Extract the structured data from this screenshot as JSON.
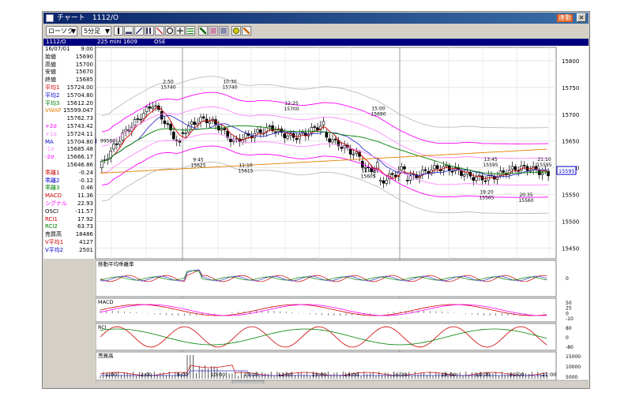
{
  "window": {
    "title": "チャート　1112/O",
    "link_label": "連動",
    "close_label": "✕"
  },
  "toolbar": {
    "chart_type": "ローソク",
    "interval": "5分足",
    "icons": [
      "candle-icon",
      "bar-icon",
      "line-icon",
      "point-figure-icon",
      "trend-icon",
      "zoom-icon",
      "cross-icon",
      "grid-icon",
      "pen-icon",
      "eraser-icon",
      "print-icon",
      "search-icon",
      "settings-icon"
    ]
  },
  "infobar": {
    "symbol": "1112/O",
    "name": "225 mini 1609",
    "exchange": "OSE"
  },
  "panel": {
    "rows": [
      {
        "label": "16/07/01",
        "value": "9:00",
        "color": "#000000"
      },
      {
        "label": "始値",
        "value": "15690",
        "color": "#000000"
      },
      {
        "label": "高値",
        "value": "15700",
        "color": "#000000"
      },
      {
        "label": "安値",
        "value": "15670",
        "color": "#000000"
      },
      {
        "label": "終値",
        "value": "15685",
        "color": "#000000"
      },
      {
        "label": "平均1",
        "value": "15724.00",
        "color": "#cc0000"
      },
      {
        "label": "平均2",
        "value": "15704.80",
        "color": "#0000cc"
      },
      {
        "label": "平均3",
        "value": "15612.20",
        "color": "#008000"
      },
      {
        "label": "VWAP",
        "value": "15599.047",
        "color": "#e08000"
      },
      {
        "label": "",
        "value": "15762.73",
        "color": "#000000"
      },
      {
        "label": "+2σ",
        "value": "15743.42",
        "color": "#ff00ff"
      },
      {
        "label": "+1σ",
        "value": "15724.11",
        "color": "#ff88ff"
      },
      {
        "label": "MA",
        "value": "15704.80",
        "color": "#0000cc"
      },
      {
        "label": "-1σ",
        "value": "15685.48",
        "color": "#ff88ff"
      },
      {
        "label": "-2σ",
        "value": "15666.17",
        "color": "#ff00ff"
      },
      {
        "label": "",
        "value": "15646.86",
        "color": "#000000"
      },
      {
        "label": "乖離1",
        "value": "-0.24",
        "color": "#cc0000"
      },
      {
        "label": "乖離2",
        "value": "-0.12",
        "color": "#0000cc"
      },
      {
        "label": "乖離3",
        "value": "0.46",
        "color": "#008000"
      },
      {
        "label": "MACD",
        "value": "11.36",
        "color": "#cc0000"
      },
      {
        "label": "シグナル",
        "value": "22.93",
        "color": "#ff00ff"
      },
      {
        "label": "OSCI",
        "value": "-11.57",
        "color": "#000000"
      },
      {
        "label": "RCI1",
        "value": "17.92",
        "color": "#cc0000"
      },
      {
        "label": "RCI2",
        "value": "63.73",
        "color": "#008000"
      },
      {
        "label": "売買高",
        "value": "18486",
        "color": "#000000"
      },
      {
        "label": "V平均1",
        "value": "4127",
        "color": "#cc0000"
      },
      {
        "label": "V平均2",
        "value": "2501",
        "color": "#0000cc"
      }
    ]
  },
  "chart_data": {
    "type": "candlestick",
    "price_axis": {
      "ticks": [
        "15800",
        "15750",
        "15700",
        "15650",
        "15600",
        "15550",
        "15500",
        "15450"
      ],
      "range": [
        15430,
        15825
      ]
    },
    "current_price": "15595",
    "left_marker": "99560",
    "annotations": [
      {
        "time": "2:50",
        "price": "15740",
        "placement": "above"
      },
      {
        "time": "10:30",
        "price": "15740",
        "placement": "above"
      },
      {
        "time": "12:25",
        "price": "15700",
        "placement": "above"
      },
      {
        "time": "15:00",
        "price": "15690",
        "placement": "above"
      },
      {
        "time": "13:45",
        "price": "15595",
        "placement": "above"
      },
      {
        "time": "21:10",
        "price": "15595",
        "placement": "above"
      },
      {
        "time": "9:45",
        "price": "15625",
        "placement": "below"
      },
      {
        "time": "11:10",
        "price": "15615",
        "placement": "below"
      },
      {
        "time": "14:40",
        "price": "15605",
        "placement": "below"
      },
      {
        "time": "19:20",
        "price": "15565",
        "placement": "below"
      },
      {
        "time": "20:35",
        "price": "15560",
        "placement": "below"
      }
    ],
    "time_axis": [
      "1:00",
      "2:00",
      "9:00",
      "10:00",
      "11:00",
      "12:00",
      "13:00",
      "14:00",
      "16:30",
      "18:00",
      "19:00",
      "20:00",
      "21:00"
    ],
    "sub_charts": [
      {
        "name": "移動平均乖離率",
        "ticks": [
          "0"
        ]
      },
      {
        "name": "MACD",
        "ticks": [
          "50",
          "25",
          "0",
          "-10"
        ]
      },
      {
        "name": "RCI",
        "ticks": [
          "80",
          "0",
          "-80"
        ]
      },
      {
        "name": "売買高",
        "ticks": [
          "15000",
          "10000",
          "5000"
        ]
      }
    ]
  },
  "colors": {
    "bg": "#ffffff",
    "grid": "#c0c0c0",
    "candle": "#000000",
    "ma1": "#cc0000",
    "ma2": "#3333cc",
    "ma3": "#008000",
    "vwap": "#e08000",
    "band2": "#ff00ff",
    "band1": "#ff88ff",
    "band3": "#bbbbbb"
  }
}
